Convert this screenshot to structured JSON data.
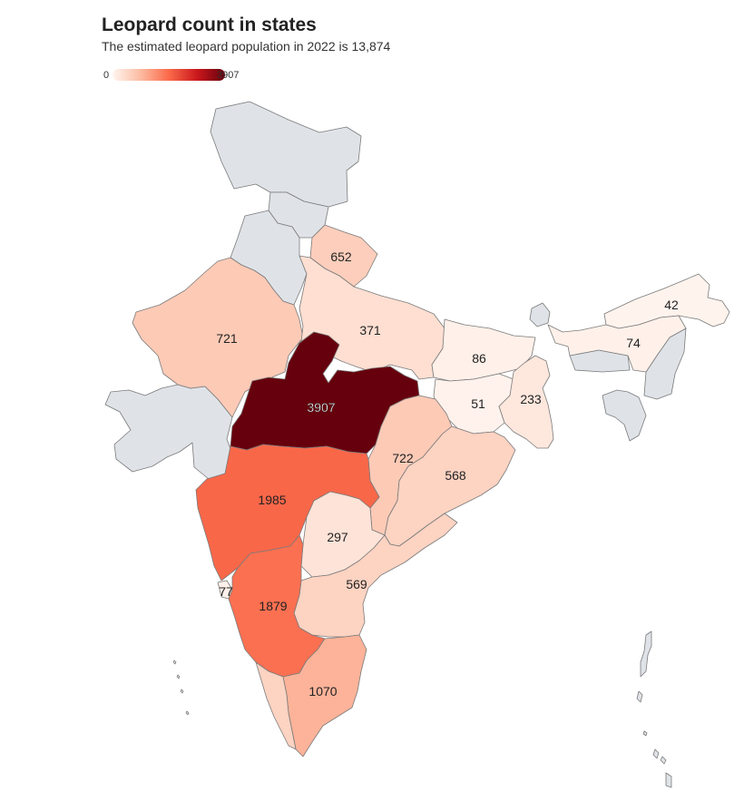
{
  "header": {
    "title": "Leopard count in states",
    "subtitle": "The estimated leopard population in 2022 is 13,874"
  },
  "legend": {
    "min_label": "0",
    "max_label": "3907",
    "min": 0,
    "max": 3907,
    "colors": [
      "#fff5f0",
      "#fcbba1",
      "#fb6a4a",
      "#cb181d",
      "#67000d"
    ]
  },
  "no_data_color": "#dfe3e8",
  "regions": [
    {
      "name": "Uttarakhand",
      "value": 652,
      "label": "652"
    },
    {
      "name": "Rajasthan",
      "value": 721,
      "label": "721"
    },
    {
      "name": "Uttar Pradesh",
      "value": 371,
      "label": "371"
    },
    {
      "name": "Bihar",
      "value": 86,
      "label": "86"
    },
    {
      "name": "Arunachal Pradesh",
      "value": 42,
      "label": "42"
    },
    {
      "name": "Assam",
      "value": 74,
      "label": "74"
    },
    {
      "name": "Madhya Pradesh",
      "value": 3907,
      "label": "3907"
    },
    {
      "name": "Jharkhand",
      "value": 51,
      "label": "51"
    },
    {
      "name": "West Bengal",
      "value": 233,
      "label": "233"
    },
    {
      "name": "Chhattisgarh",
      "value": 722,
      "label": "722"
    },
    {
      "name": "Odisha",
      "value": 568,
      "label": "568"
    },
    {
      "name": "Maharashtra",
      "value": 1985,
      "label": "1985"
    },
    {
      "name": "Telangana",
      "value": 297,
      "label": "297"
    },
    {
      "name": "Andhra Pradesh",
      "value": 569,
      "label": "569"
    },
    {
      "name": "Goa",
      "value": 77,
      "label": "77"
    },
    {
      "name": "Karnataka",
      "value": 1879,
      "label": "1879"
    },
    {
      "name": "Tamil Nadu",
      "value": 1070,
      "label": "1070"
    },
    {
      "name": "Kerala",
      "value": 570,
      "label": ""
    }
  ],
  "no_data_regions": [
    "Jammu & Kashmir",
    "Ladakh",
    "Himachal Pradesh",
    "Punjab",
    "Haryana",
    "Gujarat",
    "Sikkim",
    "Meghalaya",
    "Nagaland",
    "Manipur",
    "Mizoram",
    "Tripura",
    "Andaman & Nicobar Islands",
    "Lakshadweep"
  ]
}
